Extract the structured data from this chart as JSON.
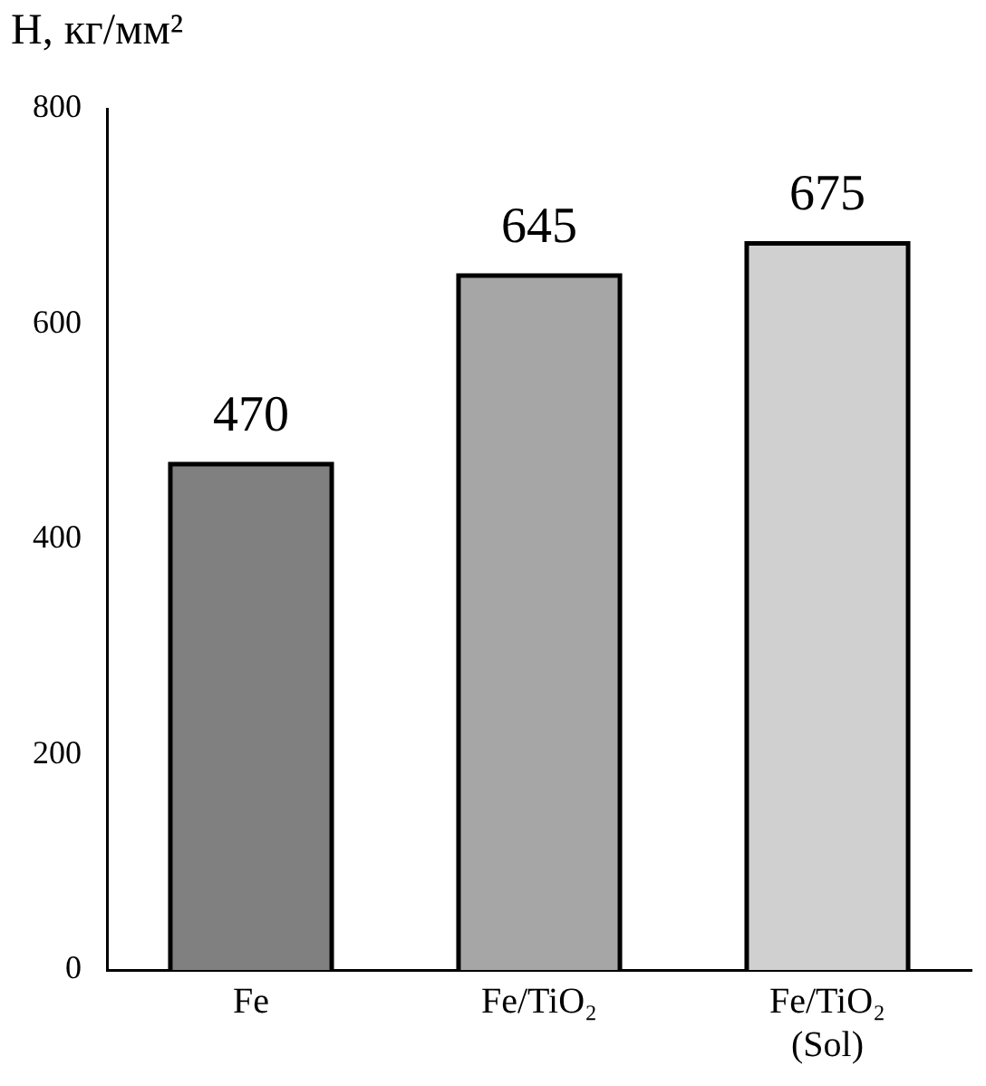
{
  "chart_data": {
    "type": "bar",
    "ylabel": "H, кг/мм²",
    "categories": [
      "Fe",
      "Fe/TiO₂",
      "Fe/TiO₂ (Sol)"
    ],
    "values": [
      470,
      645,
      675
    ],
    "colors": [
      "#808080",
      "#a6a6a6",
      "#d0d0d0"
    ],
    "ylim": [
      0,
      800
    ],
    "yticks": [
      0,
      200,
      400,
      600,
      800
    ],
    "grid": false,
    "legend": false,
    "data_labels": true
  }
}
